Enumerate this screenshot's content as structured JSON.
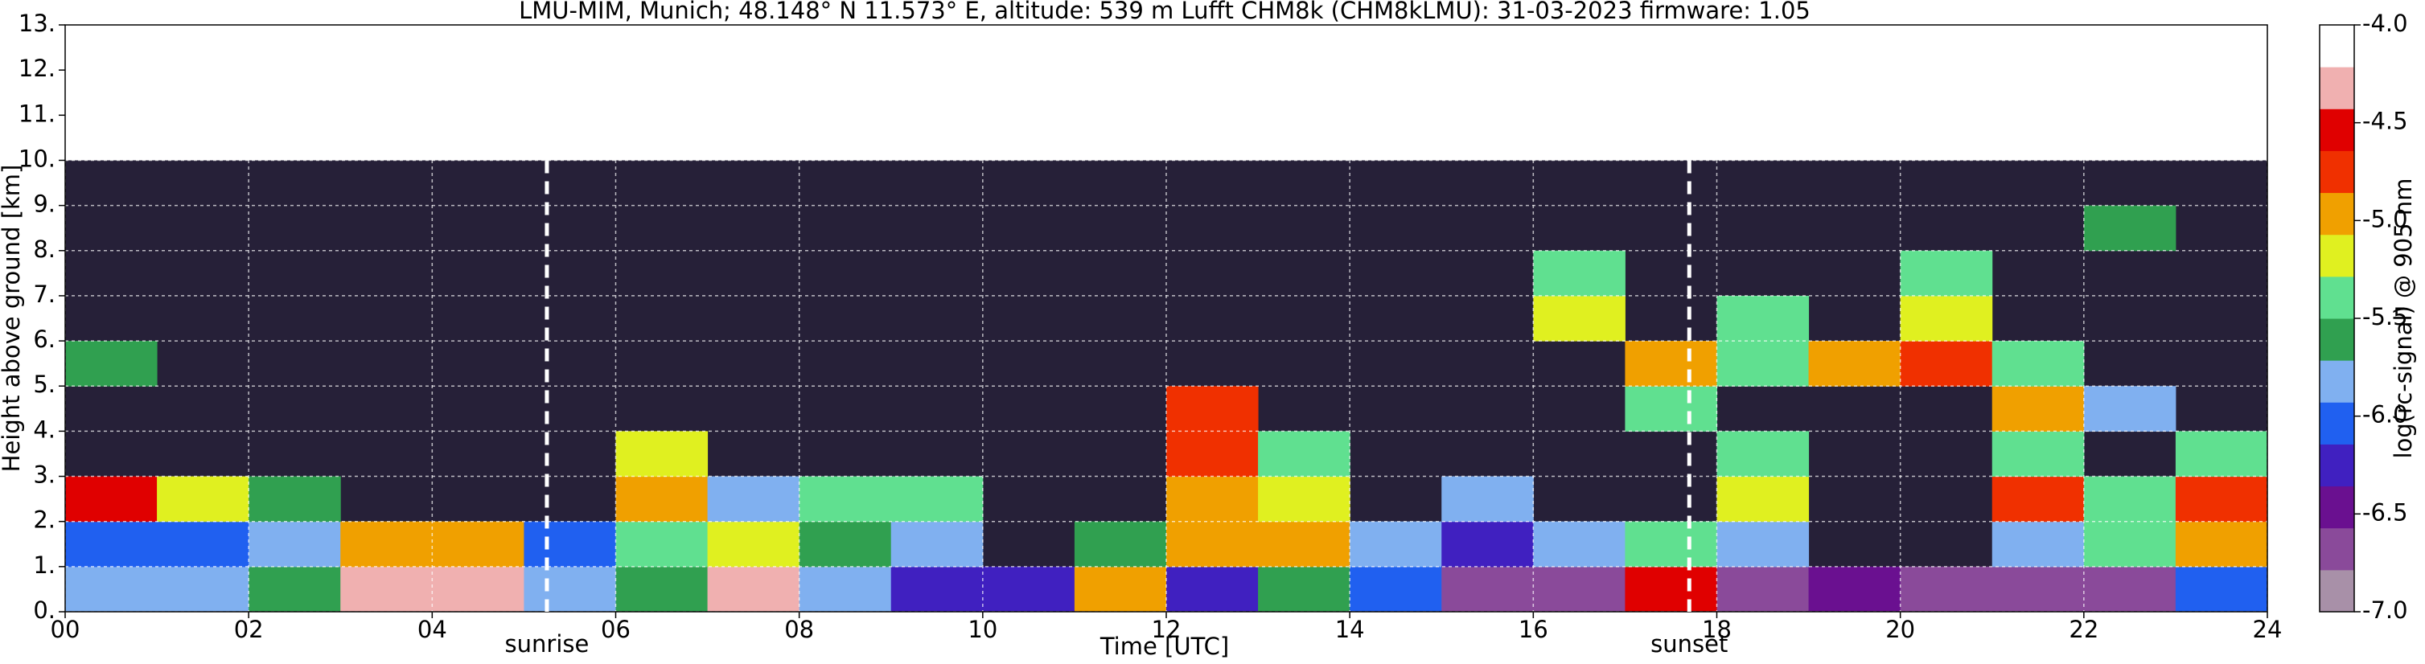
{
  "chart_data": {
    "type": "heatmap",
    "title": "LMU-MIM, Munich; 48.148° N 11.573° E, altitude: 539 m    Lufft CHM8k (CHM8kLMU): 31-03-2023    firmware: 1.05",
    "x_label": "Time [UTC]",
    "y_label": "Height above ground [km]",
    "colorbar_label": "log(rc-signal) @ 905 nm",
    "xlim": [
      0,
      24
    ],
    "ylim": [
      0,
      13
    ],
    "xticks": [
      {
        "value": 0,
        "label": "00"
      },
      {
        "value": 2,
        "label": "02"
      },
      {
        "value": 4,
        "label": "04"
      },
      {
        "value": 6,
        "label": "06"
      },
      {
        "value": 8,
        "label": "08"
      },
      10,
      12,
      14,
      16,
      18,
      20,
      22,
      24
    ],
    "yticks": [
      {
        "value": 0,
        "label": "0."
      },
      {
        "value": 1,
        "label": "1."
      },
      {
        "value": 2,
        "label": "2."
      },
      {
        "value": 3,
        "label": "3."
      },
      {
        "value": 4,
        "label": "4."
      },
      {
        "value": 5,
        "label": "5."
      },
      {
        "value": 6,
        "label": "6."
      },
      {
        "value": 7,
        "label": "7."
      },
      {
        "value": 8,
        "label": "8."
      },
      {
        "value": 9,
        "label": "9."
      },
      {
        "value": 10,
        "label": "10."
      },
      {
        "value": 11,
        "label": "11."
      },
      {
        "value": 12,
        "label": "12."
      },
      {
        "value": 13,
        "label": "13."
      }
    ],
    "clim": [
      -7,
      -4
    ],
    "cticks": [
      {
        "value": -4,
        "label": "-4.0"
      },
      -4.5,
      {
        "value": -5,
        "label": "-5.0"
      },
      -5.5,
      {
        "value": -6,
        "label": "-6.0"
      },
      -6.5,
      {
        "value": -7,
        "label": "-7.0"
      }
    ],
    "colormap": [
      "#a890a8",
      "#8a4a9a",
      "#6a1090",
      "#4020c0",
      "#2060f0",
      "#80b0f0",
      "#30a050",
      "#60e090",
      "#e0f020",
      "#f0a000",
      "#f03000",
      "#e00000",
      "#f0b0b0",
      "#ffffff"
    ],
    "no_signal_color": "#262038",
    "grid": true,
    "xbins": [
      0,
      1,
      2,
      3,
      4,
      5,
      6,
      7,
      8,
      9,
      10,
      11,
      12,
      13,
      14,
      15,
      16,
      17,
      18,
      19,
      20,
      21,
      22,
      23,
      24
    ],
    "ybins": [
      0,
      1,
      2,
      3,
      4,
      5,
      6,
      7,
      8,
      9,
      10
    ],
    "z": [
      [
        -5.8,
        -5.8,
        -5.6,
        -4.3,
        -4.3,
        -5.9,
        -5.7,
        -4.4,
        -5.9,
        -6.2,
        -6.3,
        -5.0,
        -6.2,
        -5.6,
        -6.0,
        -6.6,
        -6.6,
        -4.6,
        -6.6,
        -6.5,
        -6.6,
        -6.6,
        -6.6,
        -6.0
      ],
      [
        -6.0,
        -6.0,
        -5.9,
        -5.0,
        -5.0,
        -6.1,
        -5.5,
        -5.2,
        -5.6,
        -5.8,
        null,
        -5.6,
        -5.0,
        -5.0,
        -5.9,
        -6.2,
        -5.8,
        -5.3,
        -5.9,
        null,
        null,
        -5.8,
        -5.5,
        -5.0
      ],
      [
        -4.6,
        -5.2,
        -5.6,
        null,
        null,
        null,
        -5.0,
        -5.9,
        -5.4,
        -5.5,
        null,
        null,
        -4.9,
        -5.1,
        null,
        -5.8,
        null,
        null,
        -5.2,
        null,
        null,
        -4.8,
        -5.3,
        -4.7
      ],
      [
        null,
        null,
        null,
        null,
        null,
        null,
        -5.2,
        null,
        null,
        null,
        null,
        null,
        -4.8,
        -5.5,
        null,
        null,
        null,
        null,
        -5.4,
        null,
        null,
        -5.5,
        null,
        -5.4
      ],
      [
        null,
        null,
        null,
        null,
        null,
        null,
        null,
        null,
        null,
        null,
        null,
        null,
        -4.7,
        null,
        null,
        null,
        null,
        -5.3,
        null,
        null,
        null,
        -5.0,
        -5.8,
        null
      ],
      [
        -5.7,
        null,
        null,
        null,
        null,
        null,
        null,
        null,
        null,
        null,
        null,
        null,
        null,
        null,
        null,
        null,
        null,
        -5.0,
        -5.4,
        -5.0,
        -4.8,
        -5.4,
        null,
        null
      ],
      [
        null,
        null,
        null,
        null,
        null,
        null,
        null,
        null,
        null,
        null,
        null,
        null,
        null,
        null,
        null,
        null,
        -5.2,
        null,
        -5.3,
        null,
        -5.1,
        null,
        null,
        null
      ],
      [
        null,
        null,
        null,
        null,
        null,
        null,
        null,
        null,
        null,
        null,
        null,
        null,
        null,
        null,
        null,
        null,
        -5.5,
        null,
        null,
        null,
        -5.5,
        null,
        null,
        null
      ],
      [
        null,
        null,
        null,
        null,
        null,
        null,
        null,
        null,
        null,
        null,
        null,
        null,
        null,
        null,
        null,
        null,
        null,
        null,
        null,
        null,
        null,
        null,
        -5.6,
        null
      ],
      [
        null,
        null,
        null,
        null,
        null,
        null,
        null,
        null,
        null,
        null,
        null,
        null,
        null,
        null,
        null,
        null,
        null,
        null,
        null,
        null,
        null,
        null,
        null,
        null
      ]
    ],
    "annotations": [
      {
        "text": "sunrise",
        "x": 5.25
      },
      {
        "text": "sunset",
        "x": 17.7
      }
    ]
  }
}
